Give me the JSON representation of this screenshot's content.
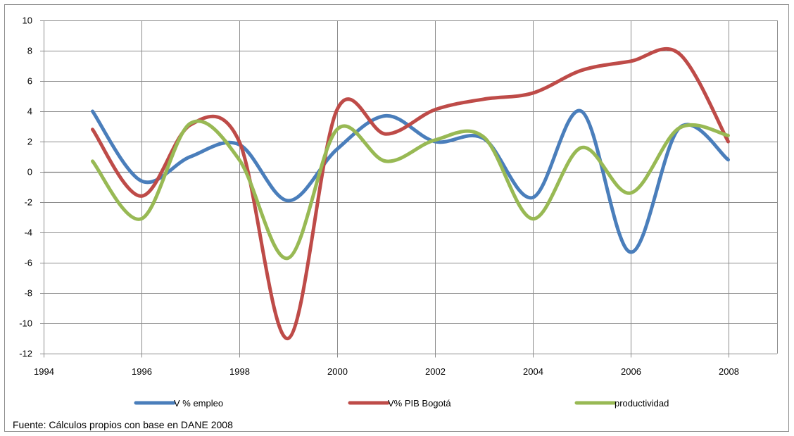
{
  "chart_data": {
    "type": "line",
    "title": "",
    "xlabel": "",
    "ylabel": "",
    "xlim": [
      1994,
      2009
    ],
    "ylim": [
      -12,
      10
    ],
    "x_ticks": [
      1994,
      1996,
      1998,
      2000,
      2002,
      2004,
      2006,
      2008
    ],
    "y_ticks": [
      -12,
      -10,
      -8,
      -6,
      -4,
      -2,
      0,
      2,
      4,
      6,
      8,
      10
    ],
    "grid": true,
    "legend": "bottom",
    "x": [
      1995,
      1996,
      1997,
      1998,
      1999,
      2000,
      2001,
      2002,
      2003,
      2004,
      2005,
      2006,
      2007,
      2008
    ],
    "series": [
      {
        "name": "V % empleo",
        "color": "#4A7EBB",
        "values": [
          4.0,
          -0.6,
          1.0,
          1.8,
          -1.9,
          1.5,
          3.7,
          2.0,
          2.2,
          -1.7,
          4.0,
          -5.3,
          2.9,
          0.8
        ]
      },
      {
        "name": "V% PIB Bogotá",
        "color": "#BE4B48",
        "values": [
          2.8,
          -1.6,
          3.1,
          2.0,
          -11.0,
          4.1,
          2.5,
          4.1,
          4.8,
          5.2,
          6.7,
          7.3,
          7.8,
          2.0
        ]
      },
      {
        "name": "productividad",
        "color": "#98B954",
        "values": [
          0.7,
          -3.1,
          3.2,
          0.8,
          -5.7,
          2.8,
          0.7,
          2.1,
          2.3,
          -3.1,
          1.6,
          -1.4,
          2.9,
          2.4
        ]
      }
    ]
  },
  "source_note": "Fuente:  Cálculos propios con base en DANE 2008"
}
